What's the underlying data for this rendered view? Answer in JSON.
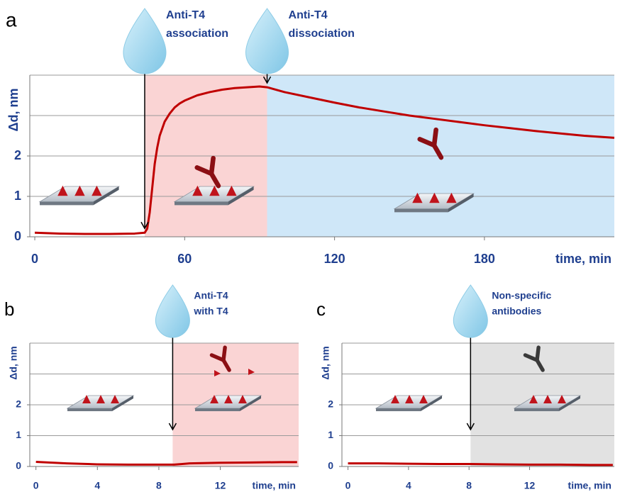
{
  "chart_data": [
    {
      "type": "line",
      "panel": "a",
      "ylabel": "Δd, nm",
      "xlabel": "time, min",
      "x": [
        0,
        10,
        20,
        30,
        40,
        44,
        45,
        46,
        47,
        48,
        49,
        50,
        52,
        54,
        56,
        58,
        60,
        65,
        70,
        75,
        80,
        85,
        90,
        93,
        100,
        110,
        120,
        130,
        140,
        150,
        160,
        170,
        180,
        190,
        200,
        210,
        220,
        232
      ],
      "values": [
        0.1,
        0.08,
        0.07,
        0.07,
        0.08,
        0.1,
        0.2,
        0.6,
        1.2,
        1.8,
        2.2,
        2.5,
        2.85,
        3.05,
        3.2,
        3.3,
        3.37,
        3.5,
        3.58,
        3.64,
        3.68,
        3.7,
        3.72,
        3.7,
        3.58,
        3.45,
        3.32,
        3.2,
        3.1,
        3.0,
        2.92,
        2.84,
        2.76,
        2.69,
        2.62,
        2.56,
        2.5,
        2.45
      ],
      "color": "#c00000",
      "xlim": [
        -2,
        232
      ],
      "xticks": [
        0,
        60,
        120,
        180
      ],
      "ylim": [
        0,
        4
      ],
      "yticks": [
        0,
        1,
        2
      ],
      "gridlines": [
        1,
        2,
        3
      ],
      "regions": [
        {
          "x0": 44,
          "x1": 93,
          "color": "#fad4d4"
        },
        {
          "x0": 93,
          "x1": 232,
          "color": "#cfe7f8"
        }
      ],
      "events": [
        {
          "x": 44,
          "label": [
            "Anti-T4",
            "association"
          ]
        },
        {
          "x": 93,
          "label": [
            "Anti-T4",
            "dissociation"
          ]
        }
      ]
    },
    {
      "type": "line",
      "panel": "b",
      "ylabel": "Δd, nm",
      "xlabel": "time, min",
      "x": [
        0,
        2,
        4,
        6,
        8,
        9,
        10,
        12,
        14,
        16,
        17
      ],
      "values": [
        0.15,
        0.1,
        0.07,
        0.06,
        0.06,
        0.06,
        0.1,
        0.12,
        0.13,
        0.14,
        0.14
      ],
      "color": "#c00000",
      "xlim": [
        -0.4,
        17.1
      ],
      "xticks": [
        0,
        4,
        8,
        12
      ],
      "ylim": [
        0,
        4
      ],
      "yticks": [
        0,
        1,
        2
      ],
      "gridlines": [
        1,
        2,
        3
      ],
      "regions": [
        {
          "x0": 8.9,
          "x1": 17.1,
          "color": "#fad4d4"
        }
      ],
      "events": [
        {
          "x": 8.9,
          "label": [
            "Anti-T4",
            "with T4"
          ]
        }
      ]
    },
    {
      "type": "line",
      "panel": "c",
      "ylabel": "Δd, nm",
      "xlabel": "time, min",
      "x": [
        0,
        2,
        4,
        6,
        8,
        10,
        12,
        14,
        16,
        17.5
      ],
      "values": [
        0.1,
        0.1,
        0.09,
        0.08,
        0.08,
        0.07,
        0.06,
        0.06,
        0.05,
        0.05
      ],
      "color": "#c00000",
      "xlim": [
        -0.4,
        17.6
      ],
      "xticks": [
        0,
        4,
        8,
        12
      ],
      "ylim": [
        0,
        4
      ],
      "yticks": [
        0,
        1,
        2
      ],
      "gridlines": [
        1,
        2,
        3
      ],
      "regions": [
        {
          "x0": 8.1,
          "x1": 17.6,
          "color": "#e2e2e2"
        }
      ],
      "events": [
        {
          "x": 8.1,
          "label": [
            "Non-specific",
            "antibodies"
          ]
        }
      ]
    }
  ]
}
